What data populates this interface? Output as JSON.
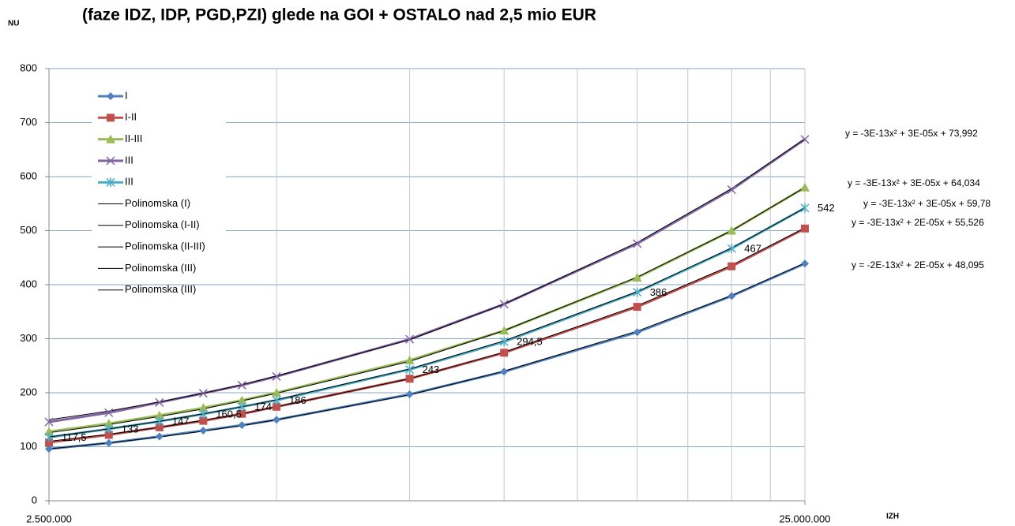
{
  "chart_data": {
    "type": "line",
    "title": "(faze IDZ, IDP, PGD,PZI) glede na GOI + OSTALO nad 2,5 mio EUR",
    "y_label": "NU",
    "x_label": "IZH",
    "x": [
      2500000,
      3000000,
      3500000,
      4000000,
      4500000,
      5000000,
      7500000,
      10000000,
      15000000,
      20000000,
      25000000
    ],
    "xlim": [
      2500000,
      25000000
    ],
    "xlog": true,
    "xticks": [
      {
        "value": 2500000,
        "label": "2.500.000"
      },
      {
        "value": 25000000,
        "label": "25.000.000"
      }
    ],
    "xgrid": [
      2500000,
      5000000,
      7500000,
      10000000,
      12500000,
      15000000,
      17500000,
      20000000,
      22500000,
      25000000
    ],
    "ylim": [
      0,
      800
    ],
    "yticks": [
      0,
      100,
      200,
      300,
      400,
      500,
      600,
      700,
      800
    ],
    "grid": true,
    "legend": "top-left",
    "series": [
      {
        "name": "I",
        "color": "#4f81bd",
        "marker": "diamond",
        "values": [
          96,
          107,
          119,
          130,
          140,
          150,
          197,
          239,
          312,
          379,
          439
        ]
      },
      {
        "name": "I-II",
        "color": "#c0504d",
        "marker": "square",
        "values": [
          108,
          122,
          136,
          148,
          161,
          174,
          226,
          274,
          359,
          434,
          504
        ]
      },
      {
        "name": "II-III",
        "color": "#9bbb59",
        "marker": "triangle",
        "values": [
          128,
          143,
          158,
          172,
          186,
          200,
          260,
          315,
          413,
          500,
          580
        ]
      },
      {
        "name": "III",
        "color": "#8064a2",
        "marker": "x",
        "values": [
          146,
          163,
          182,
          199,
          214,
          230,
          299,
          364,
          476,
          576,
          669
        ]
      },
      {
        "name": "III",
        "color": "#4bacc6",
        "marker": "star",
        "values": [
          117.5,
          133,
          147,
          160.5,
          174,
          186,
          243,
          294.5,
          386,
          467,
          542
        ],
        "value_labels": [
          "117,5",
          "133",
          "147",
          "160,5",
          "174",
          "186",
          "243",
          "294,5",
          "386",
          "467",
          "542"
        ]
      },
      {
        "name": "Polinomska (I)",
        "color": "#000000",
        "values": [
          96,
          107,
          118,
          129,
          139,
          150,
          196,
          240,
          314,
          380,
          440
        ]
      },
      {
        "name": "Polinomska (I-II)",
        "color": "#000000",
        "values": [
          110,
          123,
          136,
          149,
          161,
          174,
          226,
          275,
          361,
          436,
          505
        ]
      },
      {
        "name": "Polinomska (II-III)",
        "color": "#000000",
        "values": [
          126,
          141,
          156,
          170,
          185,
          199,
          258,
          315,
          414,
          500,
          580
        ]
      },
      {
        "name": "Polinomska (III)",
        "color": "#000000",
        "values": [
          150,
          166,
          183,
          199,
          215,
          231,
          298,
          364,
          478,
          578,
          670
        ]
      },
      {
        "name": "Polinomska (III)",
        "color": "#000000",
        "values": [
          118,
          133,
          147,
          161,
          174,
          187,
          244,
          296,
          387,
          468,
          542
        ]
      }
    ],
    "annotations": [
      "y = -3E-13x² + 3E-05x + 73,992",
      "y = -3E-13x² + 3E-05x + 64,034",
      "y = -3E-13x² + 3E-05x + 59,78",
      "y = -3E-13x² + 2E-05x + 55,526",
      "y = -2E-13x² + 2E-05x + 48,095"
    ]
  }
}
